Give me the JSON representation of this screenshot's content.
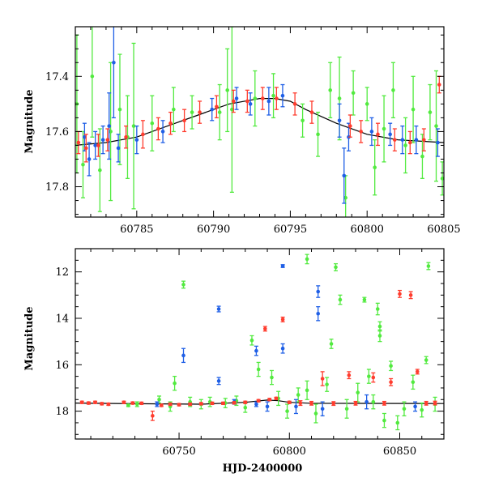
{
  "colors": {
    "blue": "#1f5fe6",
    "red": "#ff3c2e",
    "green": "#52ea3f",
    "axis": "#000000",
    "model_line": "#000000"
  },
  "chart_data": [
    {
      "type": "scatter",
      "panel": "top",
      "xlabel": "",
      "ylabel": "Magnitude",
      "xlim": [
        60781,
        60805
      ],
      "ylim": [
        17.22,
        17.91
      ],
      "y_inverted": true,
      "xticks": [
        60785,
        60790,
        60795,
        60800,
        60805
      ],
      "yticks": [
        17.4,
        17.6,
        17.8
      ],
      "grid": false,
      "model_curve": {
        "x": [
          60781,
          60783,
          60785,
          60787,
          60789,
          60791,
          60793,
          60794,
          60795,
          60796,
          60798,
          60800,
          60802,
          60805
        ],
        "y": [
          17.65,
          17.64,
          17.62,
          17.58,
          17.54,
          17.5,
          17.48,
          17.48,
          17.49,
          17.52,
          17.57,
          17.61,
          17.63,
          17.64
        ]
      },
      "series": [
        {
          "color": "blue",
          "points": [
            [
              60781.6,
              17.62,
              0.05
            ],
            [
              60781.9,
              17.7,
              0.06
            ],
            [
              60782.3,
              17.65,
              0.05
            ],
            [
              60782.8,
              17.63,
              0.05
            ],
            [
              60783.2,
              17.58,
              0.12
            ],
            [
              60783.5,
              17.35,
              0.2
            ],
            [
              60783.8,
              17.66,
              0.05
            ],
            [
              60785.0,
              17.63,
              0.05
            ],
            [
              60786.7,
              17.6,
              0.04
            ],
            [
              60789.9,
              17.52,
              0.04
            ],
            [
              60791.5,
              17.48,
              0.04
            ],
            [
              60792.4,
              17.5,
              0.04
            ],
            [
              60793.6,
              17.49,
              0.05
            ],
            [
              60794.5,
              17.47,
              0.04
            ],
            [
              60798.2,
              17.56,
              0.06
            ],
            [
              60798.5,
              17.76,
              0.1
            ],
            [
              60798.8,
              17.62,
              0.05
            ],
            [
              60800.3,
              17.6,
              0.05
            ],
            [
              60801.5,
              17.61,
              0.04
            ],
            [
              60802.3,
              17.63,
              0.05
            ],
            [
              60803.2,
              17.63,
              0.05
            ],
            [
              60804.6,
              17.64,
              0.05
            ]
          ]
        },
        {
          "color": "red",
          "points": [
            [
              60781.2,
              17.64,
              0.04
            ],
            [
              60781.7,
              17.66,
              0.05
            ],
            [
              60782.5,
              17.65,
              0.04
            ],
            [
              60783.1,
              17.63,
              0.04
            ],
            [
              60784.3,
              17.62,
              0.04
            ],
            [
              60785.4,
              17.61,
              0.05
            ],
            [
              60786.4,
              17.59,
              0.04
            ],
            [
              60787.2,
              17.57,
              0.04
            ],
            [
              60788.1,
              17.56,
              0.04
            ],
            [
              60789.1,
              17.53,
              0.04
            ],
            [
              60790.2,
              17.51,
              0.04
            ],
            [
              60791.3,
              17.49,
              0.04
            ],
            [
              60792.2,
              17.49,
              0.04
            ],
            [
              60793.2,
              17.48,
              0.04
            ],
            [
              60794.1,
              17.48,
              0.04
            ],
            [
              60795.3,
              17.5,
              0.04
            ],
            [
              60796.4,
              17.53,
              0.04
            ],
            [
              60798.9,
              17.58,
              0.04
            ],
            [
              60799.6,
              17.6,
              0.04
            ],
            [
              60800.7,
              17.61,
              0.04
            ],
            [
              60801.8,
              17.63,
              0.04
            ],
            [
              60802.8,
              17.64,
              0.04
            ],
            [
              60803.7,
              17.63,
              0.04
            ],
            [
              60804.7,
              17.43,
              0.03
            ]
          ]
        },
        {
          "color": "green",
          "points": [
            [
              60781.1,
              17.5,
              0.25
            ],
            [
              60781.5,
              17.72,
              0.12
            ],
            [
              60782.1,
              17.4,
              0.22
            ],
            [
              60782.6,
              17.74,
              0.15
            ],
            [
              60783.3,
              17.6,
              0.25
            ],
            [
              60783.9,
              17.52,
              0.2
            ],
            [
              60784.4,
              17.62,
              0.15
            ],
            [
              60784.8,
              17.58,
              0.3
            ],
            [
              60786.0,
              17.57,
              0.1
            ],
            [
              60787.4,
              17.52,
              0.08
            ],
            [
              60788.6,
              17.53,
              0.06
            ],
            [
              60790.4,
              17.53,
              0.1
            ],
            [
              60790.9,
              17.45,
              0.15
            ],
            [
              60791.2,
              17.52,
              0.3
            ],
            [
              60792.7,
              17.48,
              0.1
            ],
            [
              60793.9,
              17.47,
              0.08
            ],
            [
              60795.8,
              17.56,
              0.06
            ],
            [
              60796.8,
              17.61,
              0.08
            ],
            [
              60797.6,
              17.45,
              0.1
            ],
            [
              60798.2,
              17.48,
              0.15
            ],
            [
              60798.6,
              17.84,
              0.08
            ],
            [
              60799.1,
              17.46,
              0.08
            ],
            [
              60800.0,
              17.5,
              0.06
            ],
            [
              60800.5,
              17.73,
              0.1
            ],
            [
              60801.1,
              17.59,
              0.12
            ],
            [
              60801.7,
              17.45,
              0.1
            ],
            [
              60802.5,
              17.65,
              0.1
            ],
            [
              60803.0,
              17.52,
              0.12
            ],
            [
              60803.6,
              17.69,
              0.08
            ],
            [
              60804.1,
              17.53,
              0.1
            ],
            [
              60804.5,
              17.58,
              0.2
            ],
            [
              60804.9,
              17.77,
              0.06
            ]
          ]
        }
      ]
    },
    {
      "type": "scatter",
      "panel": "bottom",
      "xlabel": "HJD-2400000",
      "ylabel": "Magnitude",
      "xlim": [
        60703,
        60870
      ],
      "ylim": [
        11.0,
        19.2
      ],
      "y_inverted": true,
      "xticks": [
        60750,
        60800,
        60850
      ],
      "yticks": [
        12,
        14,
        16,
        18
      ],
      "grid": false,
      "model_curve": {
        "x": [
          60703,
          60730,
          60760,
          60780,
          60790,
          60795,
          60800,
          60810,
          60870
        ],
        "y": [
          17.65,
          17.68,
          17.7,
          17.62,
          17.52,
          17.55,
          17.62,
          17.66,
          17.67
        ]
      },
      "series": [
        {
          "color": "blue",
          "points": [
            [
              60752,
              15.6,
              0.3
            ],
            [
              60768,
              13.6,
              0.12
            ],
            [
              60768,
              16.7,
              0.15
            ],
            [
              60785,
              15.4,
              0.2
            ],
            [
              60785,
              17.7,
              0.1
            ],
            [
              60797,
              15.3,
              0.2
            ],
            [
              60797,
              11.75,
              0.06
            ],
            [
              60813,
              12.85,
              0.25
            ],
            [
              60813,
              13.8,
              0.3
            ],
            [
              60815,
              17.9,
              0.3
            ],
            [
              60803,
              17.8,
              0.3
            ],
            [
              60835,
              17.6,
              0.3
            ],
            [
              60857,
              17.8,
              0.2
            ],
            [
              60790,
              17.8,
              0.2
            ],
            [
              60775,
              17.6,
              0.1
            ],
            [
              60740,
              17.7,
              0.1
            ]
          ]
        },
        {
          "color": "red",
          "points": [
            [
              60706,
              17.62,
              0.05
            ],
            [
              60709,
              17.65,
              0.05
            ],
            [
              60712,
              17.62,
              0.05
            ],
            [
              60715,
              17.68,
              0.05
            ],
            [
              60718,
              17.7,
              0.05
            ],
            [
              60725,
              17.62,
              0.05
            ],
            [
              60729,
              17.65,
              0.05
            ],
            [
              60733,
              17.66,
              0.05
            ],
            [
              60738,
              18.2,
              0.2
            ],
            [
              60742,
              17.75,
              0.05
            ],
            [
              60746,
              17.7,
              0.05
            ],
            [
              60750,
              17.72,
              0.05
            ],
            [
              60755,
              17.7,
              0.05
            ],
            [
              60760,
              17.68,
              0.05
            ],
            [
              60765,
              17.66,
              0.05
            ],
            [
              60770,
              17.66,
              0.05
            ],
            [
              60775,
              17.64,
              0.05
            ],
            [
              60780,
              17.62,
              0.05
            ],
            [
              60786,
              17.55,
              0.05
            ],
            [
              60789,
              14.45,
              0.1
            ],
            [
              60791,
              17.5,
              0.05
            ],
            [
              60794,
              17.45,
              0.05
            ],
            [
              60797,
              14.05,
              0.1
            ],
            [
              60800,
              17.62,
              0.05
            ],
            [
              60805,
              17.65,
              0.1
            ],
            [
              60810,
              17.66,
              0.08
            ],
            [
              60815,
              16.6,
              0.3
            ],
            [
              60820,
              17.67,
              0.08
            ],
            [
              60827,
              16.45,
              0.15
            ],
            [
              60830,
              17.66,
              0.08
            ],
            [
              60838,
              16.55,
              0.2
            ],
            [
              60843,
              17.66,
              0.08
            ],
            [
              60846,
              16.75,
              0.15
            ],
            [
              60850,
              12.95,
              0.15
            ],
            [
              60855,
              13.0,
              0.15
            ],
            [
              60858,
              16.3,
              0.1
            ],
            [
              60862,
              17.66,
              0.08
            ],
            [
              60866,
              17.65,
              0.08
            ]
          ]
        },
        {
          "color": "green",
          "points": [
            [
              60727,
              17.75,
              0.05
            ],
            [
              60731,
              17.7,
              0.1
            ],
            [
              60741,
              17.5,
              0.15
            ],
            [
              60746,
              17.8,
              0.2
            ],
            [
              60748,
              16.8,
              0.3
            ],
            [
              60752,
              12.55,
              0.15
            ],
            [
              60755,
              17.6,
              0.2
            ],
            [
              60760,
              17.7,
              0.2
            ],
            [
              60764,
              17.6,
              0.2
            ],
            [
              60771,
              17.65,
              0.2
            ],
            [
              60776,
              17.55,
              0.2
            ],
            [
              60780,
              17.85,
              0.2
            ],
            [
              60783,
              14.95,
              0.2
            ],
            [
              60786,
              16.2,
              0.3
            ],
            [
              60792,
              16.55,
              0.3
            ],
            [
              60795,
              17.45,
              0.3
            ],
            [
              60799,
              18.0,
              0.3
            ],
            [
              60804,
              17.3,
              0.3
            ],
            [
              60808,
              11.45,
              0.2
            ],
            [
              60808,
              17.1,
              0.4
            ],
            [
              60812,
              18.1,
              0.4
            ],
            [
              60817,
              16.85,
              0.3
            ],
            [
              60819,
              15.1,
              0.2
            ],
            [
              60821,
              11.8,
              0.15
            ],
            [
              60823,
              13.2,
              0.2
            ],
            [
              60826,
              17.9,
              0.4
            ],
            [
              60831,
              17.2,
              0.4
            ],
            [
              60834,
              13.2,
              0.1
            ],
            [
              60836,
              16.5,
              0.3
            ],
            [
              60838,
              17.6,
              0.3
            ],
            [
              60840,
              13.6,
              0.25
            ],
            [
              60841,
              14.35,
              0.2
            ],
            [
              60841,
              14.75,
              0.25
            ],
            [
              60843,
              18.4,
              0.3
            ],
            [
              60846,
              16.05,
              0.2
            ],
            [
              60849,
              18.5,
              0.3
            ],
            [
              60852,
              17.9,
              0.3
            ],
            [
              60856,
              16.75,
              0.3
            ],
            [
              60860,
              17.95,
              0.3
            ],
            [
              60862,
              15.8,
              0.15
            ],
            [
              60863,
              11.75,
              0.15
            ],
            [
              60866,
              17.7,
              0.3
            ]
          ]
        }
      ]
    }
  ]
}
